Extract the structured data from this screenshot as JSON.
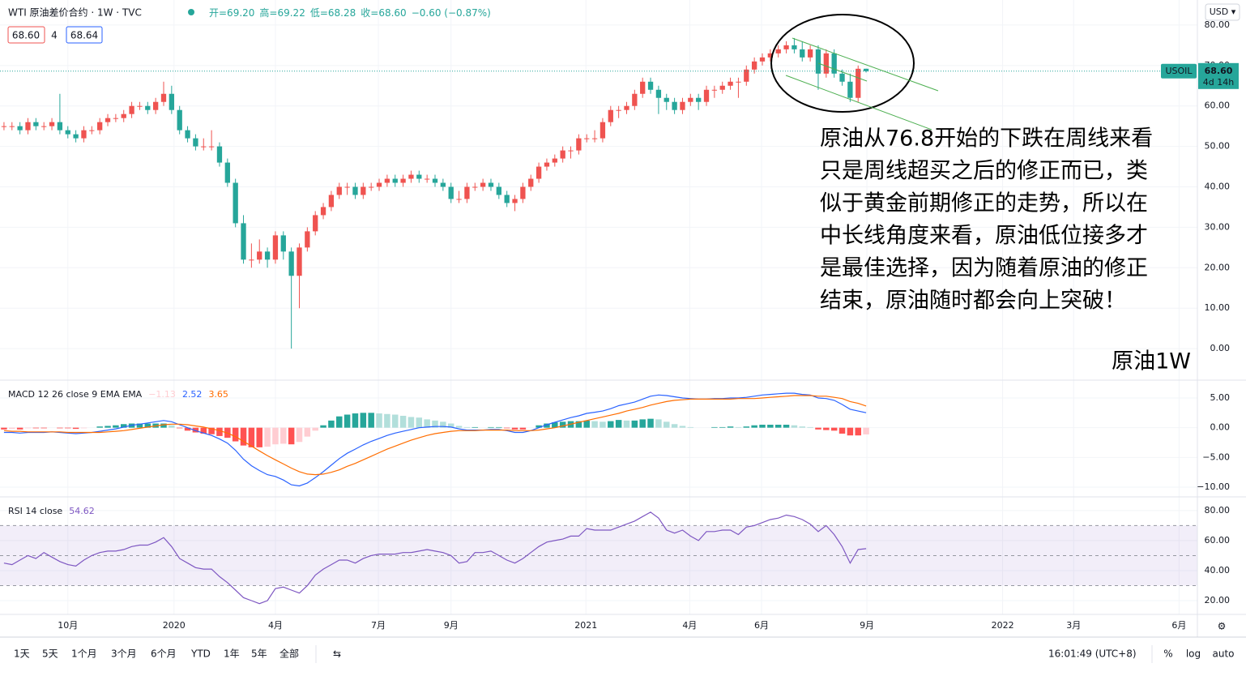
{
  "header": {
    "symbol": "WTI 原油差价合约 · 1W · TVC",
    "ohlc": [
      "开=69.20",
      "高=69.22",
      "低=68.28",
      "收=68.60",
      "−0.60 (−0.87%)"
    ],
    "bid": "68.60",
    "spread": "4",
    "ask": "68.64"
  },
  "currency": "USD ▾",
  "toolbar": {
    "ranges": [
      "1天",
      "5天",
      "1个月",
      "3个月",
      "6个月",
      "YTD",
      "1年",
      "5年",
      "全部"
    ],
    "time": "16:01:49 (UTC+8)",
    "options": [
      "%",
      "log",
      "auto"
    ]
  },
  "chart_data": [
    {
      "type": "candlestick",
      "colors": {
        "up": "#ef5350",
        "down": "#26a69a"
      },
      "ohlc": [
        [
          55,
          56,
          54,
          55
        ],
        [
          55,
          56,
          54,
          55
        ],
        [
          55,
          56,
          53,
          54
        ],
        [
          54,
          57,
          53,
          56
        ],
        [
          56,
          57,
          54,
          55
        ],
        [
          55,
          56,
          54,
          55
        ],
        [
          55,
          57,
          54,
          56
        ],
        [
          56,
          63,
          53,
          54
        ],
        [
          54,
          55,
          52,
          53
        ],
        [
          53,
          54,
          51,
          52
        ],
        [
          52,
          55,
          51,
          54
        ],
        [
          54,
          55,
          53,
          54
        ],
        [
          54,
          57,
          53,
          56
        ],
        [
          56,
          58,
          55,
          57
        ],
        [
          57,
          58,
          56,
          57
        ],
        [
          57,
          59,
          56,
          58
        ],
        [
          58,
          61,
          57,
          60
        ],
        [
          60,
          61,
          59,
          60
        ],
        [
          60,
          61,
          58,
          59
        ],
        [
          59,
          62,
          58,
          61
        ],
        [
          61,
          66,
          60,
          63
        ],
        [
          63,
          65,
          58,
          59
        ],
        [
          59,
          60,
          53,
          54
        ],
        [
          54,
          55,
          51,
          52
        ],
        [
          52,
          53,
          49,
          50
        ],
        [
          50,
          52,
          49,
          50
        ],
        [
          50,
          54,
          49,
          50
        ],
        [
          50,
          51,
          45,
          46
        ],
        [
          46,
          47,
          40,
          41
        ],
        [
          41,
          42,
          30,
          31
        ],
        [
          31,
          33,
          21,
          22
        ],
        [
          22,
          26,
          20,
          22
        ],
        [
          22,
          27,
          21,
          24
        ],
        [
          24,
          25,
          20,
          22
        ],
        [
          22,
          29,
          21,
          28
        ],
        [
          28,
          29,
          22,
          24
        ],
        [
          24,
          25,
          0,
          18
        ],
        [
          18,
          26,
          10,
          25
        ],
        [
          25,
          30,
          24,
          29
        ],
        [
          29,
          34,
          28,
          33
        ],
        [
          33,
          36,
          32,
          35
        ],
        [
          35,
          39,
          34,
          38
        ],
        [
          38,
          41,
          37,
          40
        ],
        [
          40,
          41,
          38,
          40
        ],
        [
          40,
          41,
          37,
          38
        ],
        [
          38,
          41,
          37,
          40
        ],
        [
          40,
          41,
          39,
          40
        ],
        [
          40,
          42,
          39,
          41
        ],
        [
          41,
          43,
          40,
          42
        ],
        [
          42,
          43,
          40,
          41
        ],
        [
          41,
          43,
          40,
          42
        ],
        [
          42,
          44,
          41,
          43
        ],
        [
          43,
          44,
          41,
          42
        ],
        [
          42,
          43,
          41,
          42
        ],
        [
          42,
          43,
          40,
          41
        ],
        [
          41,
          42,
          39,
          40
        ],
        [
          40,
          41,
          36,
          37
        ],
        [
          37,
          39,
          36,
          37
        ],
        [
          37,
          41,
          36,
          40
        ],
        [
          40,
          41,
          39,
          40
        ],
        [
          40,
          42,
          39,
          41
        ],
        [
          41,
          42,
          39,
          40
        ],
        [
          40,
          41,
          37,
          38
        ],
        [
          38,
          39,
          35,
          36
        ],
        [
          36,
          38,
          34,
          37
        ],
        [
          37,
          41,
          36,
          40
        ],
        [
          40,
          43,
          39,
          42
        ],
        [
          42,
          46,
          41,
          45
        ],
        [
          45,
          47,
          44,
          46
        ],
        [
          46,
          48,
          45,
          47
        ],
        [
          47,
          50,
          46,
          49
        ],
        [
          49,
          50,
          47,
          49
        ],
        [
          49,
          53,
          48,
          52
        ],
        [
          52,
          53,
          51,
          52
        ],
        [
          52,
          54,
          51,
          52
        ],
        [
          52,
          57,
          51,
          56
        ],
        [
          56,
          60,
          55,
          59
        ],
        [
          59,
          60,
          57,
          59
        ],
        [
          59,
          61,
          58,
          60
        ],
        [
          60,
          64,
          59,
          63
        ],
        [
          63,
          67,
          62,
          66
        ],
        [
          66,
          67,
          63,
          64
        ],
        [
          64,
          65,
          58,
          62
        ],
        [
          62,
          63,
          59,
          61
        ],
        [
          61,
          62,
          58,
          59
        ],
        [
          59,
          62,
          58,
          61
        ],
        [
          61,
          63,
          60,
          62
        ],
        [
          62,
          63,
          59,
          61
        ],
        [
          61,
          65,
          60,
          64
        ],
        [
          64,
          65,
          62,
          64
        ],
        [
          64,
          66,
          63,
          65
        ],
        [
          65,
          67,
          64,
          66
        ],
        [
          66,
          67,
          62,
          66
        ],
        [
          66,
          70,
          65,
          69
        ],
        [
          69,
          72,
          68,
          71
        ],
        [
          71,
          73,
          70,
          72
        ],
        [
          72,
          74,
          71,
          73
        ],
        [
          73,
          75,
          72,
          74
        ],
        [
          74,
          76,
          73,
          75
        ],
        [
          75,
          76.8,
          73,
          74
        ],
        [
          74,
          76,
          71,
          72
        ],
        [
          72,
          75,
          71,
          74
        ],
        [
          74,
          75,
          64,
          68
        ],
        [
          68,
          74,
          67,
          73
        ],
        [
          73,
          74,
          67,
          68
        ],
        [
          68,
          69,
          65,
          66
        ],
        [
          66,
          68,
          61,
          62
        ],
        [
          62,
          70,
          61,
          69.2
        ],
        [
          69.2,
          69.22,
          68.28,
          68.6
        ]
      ],
      "xlim": [
        -0.5,
        149.5
      ],
      "xticks": [
        {
          "value": 8,
          "label": "10月"
        },
        {
          "value": 21.3,
          "label": "2020"
        },
        {
          "value": 34,
          "label": "4月"
        },
        {
          "value": 46.9,
          "label": "7月"
        },
        {
          "value": 56,
          "label": "9月"
        },
        {
          "value": 72.9,
          "label": "2021"
        },
        {
          "value": 85.9,
          "label": "4月"
        },
        {
          "value": 94.9,
          "label": "6月"
        },
        {
          "value": 108.1,
          "label": "9月"
        },
        {
          "value": 125.1,
          "label": "2022"
        },
        {
          "value": 134,
          "label": "3月"
        },
        {
          "value": 147.2,
          "label": "6月"
        }
      ],
      "ylim": [
        -7.6,
        86.2
      ],
      "yticks": [
        {
          "value": 0,
          "label": "0.00"
        },
        {
          "value": 10,
          "label": "10.00"
        },
        {
          "value": 20,
          "label": "20.00"
        },
        {
          "value": 30,
          "label": "30.00"
        },
        {
          "value": 40,
          "label": "40.00"
        },
        {
          "value": 50,
          "label": "50.00"
        },
        {
          "value": 60,
          "label": "60.00"
        },
        {
          "value": 70,
          "label": "70.00"
        },
        {
          "value": 80,
          "label": "80.00"
        }
      ],
      "last_price": {
        "symbol": "USOIL",
        "value": 68.6,
        "label": "68.60",
        "countdown": "4d 14h",
        "color": "#26a69a"
      },
      "annotation": {
        "lines": [
          "原油从76.8开始的下跌在周线来看",
          "只是周线超买之后的修正而已，类",
          "似于黄金前期修正的走势，所以在",
          "中长线角度来看，原油低位接多才",
          "是最佳选择，因为随着原油的修正",
          "结束，原油随时都会向上突破！"
        ],
        "tag": "原油1W"
      }
    },
    {
      "type": "macd",
      "title": "MACD 12 26 close 9 EMA EMA",
      "ylim": [
        -11.5,
        7.86
      ],
      "yticks": [
        {
          "value": 5,
          "label": "5.00"
        },
        {
          "value": 0,
          "label": "0.00"
        },
        {
          "value": -5,
          "label": "−5.00"
        },
        {
          "value": -10,
          "label": "−10.00"
        }
      ],
      "histogram": {
        "colors": [
          "#26a69a",
          "#b2dfdb",
          "#ff5252",
          "#ffcdd2"
        ],
        "last_value_label": "−1.13",
        "label_color": "#ffcdd2",
        "values": [
          -0.3,
          -0.2,
          -0.3,
          -0.1,
          -0.1,
          -0.1,
          0.0,
          -0.1,
          -0.1,
          -0.2,
          -0.1,
          0.0,
          0.2,
          0.3,
          0.4,
          0.6,
          0.7,
          0.7,
          0.7,
          0.7,
          0.7,
          0.4,
          -0.1,
          -0.5,
          -0.8,
          -1.0,
          -1.1,
          -1.4,
          -1.7,
          -2.3,
          -3.0,
          -3.3,
          -3.3,
          -3.2,
          -2.8,
          -2.7,
          -2.8,
          -2.4,
          -1.5,
          -0.5,
          0.4,
          1.2,
          1.9,
          2.2,
          2.4,
          2.5,
          2.5,
          2.4,
          2.3,
          2.2,
          2.0,
          1.8,
          1.7,
          1.4,
          1.2,
          1.0,
          0.7,
          0.3,
          0.1,
          0.1,
          0.0,
          0.1,
          0.1,
          -0.1,
          -0.3,
          -0.3,
          0.0,
          0.4,
          0.7,
          0.9,
          1.0,
          1.1,
          1.1,
          1.2,
          1.1,
          1.0,
          1.1,
          1.3,
          1.2,
          1.2,
          1.4,
          1.5,
          1.4,
          1.0,
          0.6,
          0.3,
          0.1,
          0.0,
          0.0,
          0.1,
          0.1,
          0.2,
          0.1,
          0.2,
          0.4,
          0.5,
          0.5,
          0.5,
          0.5,
          0.4,
          0.2,
          0.1,
          -0.3,
          -0.4,
          -0.5,
          -1.0,
          -1.3,
          -1.3,
          -1.13
        ]
      },
      "series": [
        {
          "color": "#2962ff",
          "last_value_label": "2.52",
          "values": [
            -0.8,
            -0.8,
            -0.9,
            -0.8,
            -0.8,
            -0.8,
            -0.7,
            -0.8,
            -0.9,
            -1.0,
            -0.9,
            -0.8,
            -0.6,
            -0.4,
            -0.2,
            0.1,
            0.4,
            0.6,
            0.8,
            1.0,
            1.2,
            1.0,
            0.5,
            0.0,
            -0.5,
            -0.9,
            -1.3,
            -1.9,
            -2.6,
            -3.8,
            -5.3,
            -6.4,
            -7.2,
            -7.9,
            -8.2,
            -8.8,
            -9.6,
            -9.8,
            -9.3,
            -8.4,
            -7.4,
            -6.3,
            -5.2,
            -4.3,
            -3.6,
            -2.9,
            -2.3,
            -1.8,
            -1.3,
            -0.9,
            -0.6,
            -0.3,
            0.0,
            0.1,
            0.2,
            0.2,
            0.1,
            -0.2,
            -0.4,
            -0.4,
            -0.4,
            -0.3,
            -0.3,
            -0.5,
            -0.8,
            -0.8,
            -0.5,
            0.0,
            0.5,
            0.9,
            1.3,
            1.7,
            2.0,
            2.4,
            2.6,
            2.8,
            3.2,
            3.7,
            4.0,
            4.3,
            4.8,
            5.3,
            5.5,
            5.4,
            5.2,
            5.0,
            4.9,
            4.8,
            4.8,
            4.9,
            4.9,
            5.0,
            5.0,
            5.1,
            5.3,
            5.5,
            5.6,
            5.7,
            5.8,
            5.8,
            5.6,
            5.5,
            5.0,
            4.9,
            4.6,
            3.9,
            3.1,
            2.8,
            2.52
          ]
        },
        {
          "color": "#ff6d00",
          "last_value_label": "3.65",
          "values": [
            -0.5,
            -0.6,
            -0.6,
            -0.7,
            -0.7,
            -0.7,
            -0.7,
            -0.7,
            -0.8,
            -0.8,
            -0.8,
            -0.8,
            -0.8,
            -0.7,
            -0.6,
            -0.5,
            -0.3,
            -0.1,
            0.1,
            0.3,
            0.5,
            0.6,
            0.6,
            0.5,
            0.3,
            0.1,
            -0.2,
            -0.5,
            -0.9,
            -1.5,
            -2.3,
            -3.1,
            -3.9,
            -4.7,
            -5.4,
            -6.1,
            -6.8,
            -7.4,
            -7.8,
            -7.9,
            -7.8,
            -7.5,
            -7.1,
            -6.5,
            -6.0,
            -5.4,
            -4.8,
            -4.2,
            -3.6,
            -3.1,
            -2.6,
            -2.1,
            -1.7,
            -1.3,
            -1.0,
            -0.8,
            -0.6,
            -0.5,
            -0.5,
            -0.5,
            -0.4,
            -0.4,
            -0.4,
            -0.4,
            -0.5,
            -0.5,
            -0.5,
            -0.4,
            -0.2,
            0.0,
            0.3,
            0.6,
            0.9,
            1.2,
            1.5,
            1.8,
            2.1,
            2.4,
            2.8,
            3.1,
            3.4,
            3.8,
            4.1,
            4.4,
            4.6,
            4.7,
            4.8,
            4.8,
            4.8,
            4.8,
            4.8,
            4.8,
            4.9,
            4.9,
            4.9,
            5.0,
            5.1,
            5.2,
            5.3,
            5.4,
            5.4,
            5.4,
            5.3,
            5.3,
            5.1,
            4.9,
            4.4,
            4.1,
            3.65
          ]
        }
      ]
    },
    {
      "type": "rsi",
      "title": "RSI 14 close",
      "ylim": [
        10.8,
        88.6
      ],
      "yticks": [
        {
          "value": 80,
          "label": "80.00"
        },
        {
          "value": 60,
          "label": "60.00"
        },
        {
          "value": 40,
          "label": "40.00"
        },
        {
          "value": 20,
          "label": "20.00"
        }
      ],
      "bands": [
        70,
        50,
        30
      ],
      "band_color": "rgba(126,87,194,0.1)",
      "series": [
        {
          "color": "#7e57c2",
          "last_value_label": "54.62",
          "values": [
            45,
            44,
            47,
            50,
            48,
            52,
            49,
            46,
            44,
            43,
            47,
            50,
            52,
            53,
            53,
            54,
            56,
            57,
            57,
            59,
            62,
            56,
            48,
            45,
            42,
            41,
            41,
            36,
            32,
            27,
            22,
            20,
            18,
            20,
            28,
            29,
            27,
            25,
            30,
            37,
            41,
            44,
            47,
            47,
            45,
            48,
            50,
            51,
            51,
            51,
            52,
            52,
            53,
            54,
            53,
            52,
            50,
            45,
            46,
            52,
            52,
            53,
            50,
            47,
            45,
            48,
            52,
            56,
            59,
            60,
            61,
            63,
            63,
            68,
            67,
            67,
            67,
            69,
            71,
            73,
            76,
            79,
            75,
            67,
            65,
            67,
            63,
            60,
            66,
            66,
            67,
            67,
            64,
            69,
            70,
            72,
            74,
            75,
            77,
            76,
            74,
            71,
            66,
            70,
            64,
            56,
            45,
            54,
            54.62
          ]
        }
      ]
    }
  ]
}
